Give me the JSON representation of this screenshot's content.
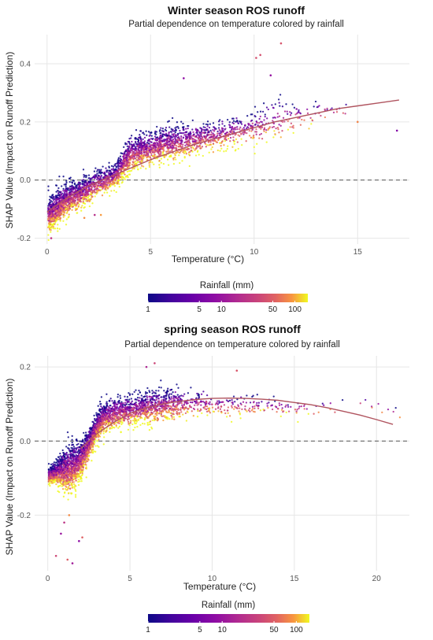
{
  "chart_data": [
    {
      "type": "scatter",
      "title": "Winter season ROS runoff",
      "subtitle": "Partial dependence on temperature colored by rainfall",
      "xlabel": "Temperature (°C)",
      "ylabel": "SHAP Value (Impact on Runoff Prediction)",
      "xlim": [
        -0.6,
        17.5
      ],
      "ylim": [
        -0.22,
        0.5
      ],
      "x_ticks": [
        0,
        5,
        10,
        15
      ],
      "y_ticks": [
        -0.2,
        0.0,
        0.2,
        0.4
      ],
      "y_tick_labels": [
        "-0.2",
        "0.0",
        "0.2",
        "0.4"
      ],
      "grid": true,
      "reference_line": {
        "y": 0,
        "style": "dashed"
      },
      "trend_line": {
        "x": [
          0,
          1,
          2,
          3,
          4,
          5,
          6,
          7,
          8,
          9,
          10,
          11,
          12,
          13,
          14,
          15,
          16,
          17
        ],
        "y": [
          -0.11,
          -0.06,
          -0.02,
          0.01,
          0.04,
          0.07,
          0.095,
          0.12,
          0.14,
          0.16,
          0.18,
          0.2,
          0.215,
          0.23,
          0.245,
          0.255,
          0.265,
          0.275
        ]
      },
      "point_cloud": {
        "x": [
          0.05,
          0.3,
          0.6,
          0.9,
          1.2,
          1.6,
          2.0,
          2.5,
          3.0,
          3.4,
          3.7,
          4.0,
          4.5,
          5.0,
          5.5,
          6.0,
          6.5,
          7.0,
          7.5,
          8.0,
          8.5,
          9.0,
          9.5,
          10.0,
          10.5,
          11.0,
          11.5,
          12.0,
          12.5,
          13.0,
          13.5,
          14.0
        ],
        "center": [
          -0.12,
          -0.11,
          -0.09,
          -0.07,
          -0.06,
          -0.05,
          -0.03,
          -0.01,
          0.0,
          0.02,
          0.06,
          0.085,
          0.1,
          0.11,
          0.12,
          0.125,
          0.13,
          0.14,
          0.145,
          0.15,
          0.16,
          0.165,
          0.17,
          0.18,
          0.19,
          0.2,
          0.21,
          0.22,
          0.22,
          0.23,
          0.23,
          0.24
        ],
        "spread": [
          0.05,
          0.05,
          0.05,
          0.05,
          0.045,
          0.045,
          0.04,
          0.04,
          0.035,
          0.04,
          0.05,
          0.05,
          0.05,
          0.05,
          0.05,
          0.05,
          0.05,
          0.05,
          0.045,
          0.045,
          0.045,
          0.045,
          0.05,
          0.055,
          0.06,
          0.055,
          0.05,
          0.045,
          0.04,
          0.035,
          0.035,
          0.03
        ],
        "density": [
          220,
          200,
          180,
          170,
          170,
          160,
          150,
          150,
          140,
          130,
          150,
          180,
          180,
          170,
          150,
          130,
          110,
          95,
          80,
          70,
          60,
          50,
          45,
          40,
          30,
          25,
          18,
          14,
          10,
          8,
          6,
          5
        ]
      },
      "outliers": [
        {
          "x": 11.3,
          "y": 0.47
        },
        {
          "x": 10.3,
          "y": 0.43
        },
        {
          "x": 10.1,
          "y": 0.42
        },
        {
          "x": 6.6,
          "y": 0.35
        },
        {
          "x": 10.8,
          "y": 0.36
        },
        {
          "x": 16.9,
          "y": 0.17
        },
        {
          "x": 15.0,
          "y": 0.2
        },
        {
          "x": 0.2,
          "y": -0.2
        },
        {
          "x": 1.8,
          "y": -0.13
        },
        {
          "x": 2.3,
          "y": -0.12
        },
        {
          "x": 2.6,
          "y": -0.12
        }
      ],
      "legend": {
        "title": "Rainfall (mm)",
        "scale": "log",
        "range": [
          1,
          150
        ],
        "ticks": [
          1,
          5,
          10,
          50,
          100
        ],
        "tick_labels": [
          "1",
          "5",
          "10",
          "50",
          "100"
        ],
        "colormap": "plasma",
        "placement": "bottom"
      }
    },
    {
      "type": "scatter",
      "title": "spring season ROS runoff",
      "subtitle": "Partial dependence on temperature colored by rainfall",
      "xlabel": "Temperature (°C)",
      "ylabel": "SHAP Value (Impact on Runoff Prediction)",
      "xlim": [
        -0.8,
        22.0
      ],
      "ylim": [
        -0.35,
        0.23
      ],
      "x_ticks": [
        0,
        5,
        10,
        15,
        20
      ],
      "y_ticks": [
        -0.2,
        0.0,
        0.2
      ],
      "y_tick_labels": [
        "-0.2",
        "0.0",
        "0.2"
      ],
      "grid": true,
      "reference_line": {
        "y": 0,
        "style": "dashed"
      },
      "trend_line": {
        "x": [
          2,
          3,
          4,
          5,
          6,
          7,
          8,
          9,
          10,
          11,
          12,
          13,
          14,
          15,
          16,
          17,
          18,
          19,
          20,
          21
        ],
        "y": [
          -0.02,
          0.02,
          0.05,
          0.075,
          0.09,
          0.1,
          0.107,
          0.112,
          0.115,
          0.116,
          0.115,
          0.113,
          0.11,
          0.104,
          0.098,
          0.09,
          0.08,
          0.07,
          0.058,
          0.045
        ]
      },
      "point_cloud": {
        "x": [
          0.05,
          0.3,
          0.6,
          0.9,
          1.2,
          1.5,
          1.8,
          2.1,
          2.4,
          2.7,
          3.0,
          3.3,
          3.7,
          4.2,
          4.8,
          5.4,
          6.0,
          6.6,
          7.2,
          7.8,
          8.5,
          9.5,
          10.5,
          11.5,
          12.5,
          13.5,
          14.5,
          15.5,
          17.0,
          19.5,
          21.0
        ],
        "center": [
          -0.095,
          -0.09,
          -0.085,
          -0.08,
          -0.075,
          -0.07,
          -0.06,
          -0.045,
          -0.02,
          0.01,
          0.04,
          0.06,
          0.07,
          0.075,
          0.08,
          0.085,
          0.09,
          0.095,
          0.095,
          0.1,
          0.1,
          0.1,
          0.095,
          0.095,
          0.095,
          0.095,
          0.09,
          0.09,
          0.09,
          0.1,
          0.08
        ],
        "spread": [
          0.02,
          0.025,
          0.035,
          0.05,
          0.055,
          0.05,
          0.045,
          0.04,
          0.035,
          0.035,
          0.035,
          0.035,
          0.035,
          0.035,
          0.035,
          0.035,
          0.04,
          0.04,
          0.04,
          0.035,
          0.03,
          0.025,
          0.025,
          0.025,
          0.02,
          0.02,
          0.02,
          0.02,
          0.02,
          0.02,
          0.015
        ],
        "density": [
          160,
          170,
          180,
          190,
          190,
          180,
          170,
          170,
          170,
          170,
          170,
          160,
          150,
          150,
          150,
          150,
          140,
          120,
          100,
          80,
          60,
          45,
          35,
          30,
          25,
          20,
          15,
          10,
          6,
          5,
          3
        ]
      },
      "outliers": [
        {
          "x": 6.5,
          "y": 0.21
        },
        {
          "x": 6.0,
          "y": 0.2
        },
        {
          "x": 11.5,
          "y": 0.19
        },
        {
          "x": 0.5,
          "y": -0.31
        },
        {
          "x": 1.2,
          "y": -0.32
        },
        {
          "x": 1.5,
          "y": -0.33
        },
        {
          "x": 1.9,
          "y": -0.27
        },
        {
          "x": 2.1,
          "y": -0.26
        },
        {
          "x": 0.8,
          "y": -0.25
        },
        {
          "x": 1.0,
          "y": -0.22
        },
        {
          "x": 1.3,
          "y": -0.2
        }
      ],
      "legend": {
        "title": "Rainfall (mm)",
        "scale": "log",
        "range": [
          1,
          150
        ],
        "ticks": [
          1,
          5,
          10,
          50,
          100
        ],
        "tick_labels": [
          "1",
          "5",
          "10",
          "50",
          "100"
        ],
        "colormap": "plasma",
        "placement": "bottom"
      }
    }
  ]
}
